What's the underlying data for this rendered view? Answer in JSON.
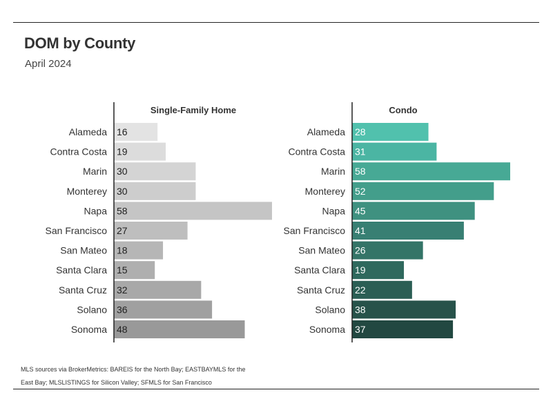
{
  "header": {
    "title": "DOM by County",
    "subtitle": "April 2024"
  },
  "footnote": "MLS sources via BrokerMetrics: BAREIS for the North Bay; EASTBAYMLS for the East Bay; MLSLISTINGS for Silicon Valley; SFMLS for San Francisco",
  "chart_data": [
    {
      "type": "bar",
      "orientation": "horizontal",
      "title": "Single-Family Home",
      "categories": [
        "Alameda",
        "Contra Costa",
        "Marin",
        "Monterey",
        "Napa",
        "San Francisco",
        "San Mateo",
        "Santa Clara",
        "Santa Cruz",
        "Solano",
        "Sonoma"
      ],
      "values": [
        16,
        19,
        30,
        30,
        58,
        27,
        18,
        15,
        32,
        36,
        48
      ],
      "colors": [
        "#e3e3e3",
        "#dcdcdc",
        "#d4d4d4",
        "#cdcdcd",
        "#c5c5c5",
        "#bebebe",
        "#b6b6b6",
        "#afafaf",
        "#a8a8a8",
        "#a0a0a0",
        "#999999"
      ],
      "label_color": "#222222",
      "xlim": [
        0,
        58
      ]
    },
    {
      "type": "bar",
      "orientation": "horizontal",
      "title": "Condo",
      "categories": [
        "Alameda",
        "Contra Costa",
        "Marin",
        "Monterey",
        "Napa",
        "San Francisco",
        "San Mateo",
        "Santa Clara",
        "Santa Cruz",
        "Solano",
        "Sonoma"
      ],
      "values": [
        28,
        31,
        58,
        52,
        45,
        41,
        26,
        19,
        22,
        38,
        37
      ],
      "colors": [
        "#51c1ad",
        "#4bb5a3",
        "#47a995",
        "#439e8b",
        "#3f9180",
        "#387f73",
        "#347467",
        "#2f695d",
        "#2b5e54",
        "#27524a",
        "#224841"
      ],
      "label_color": "#ffffff",
      "xlim": [
        0,
        58
      ]
    }
  ]
}
